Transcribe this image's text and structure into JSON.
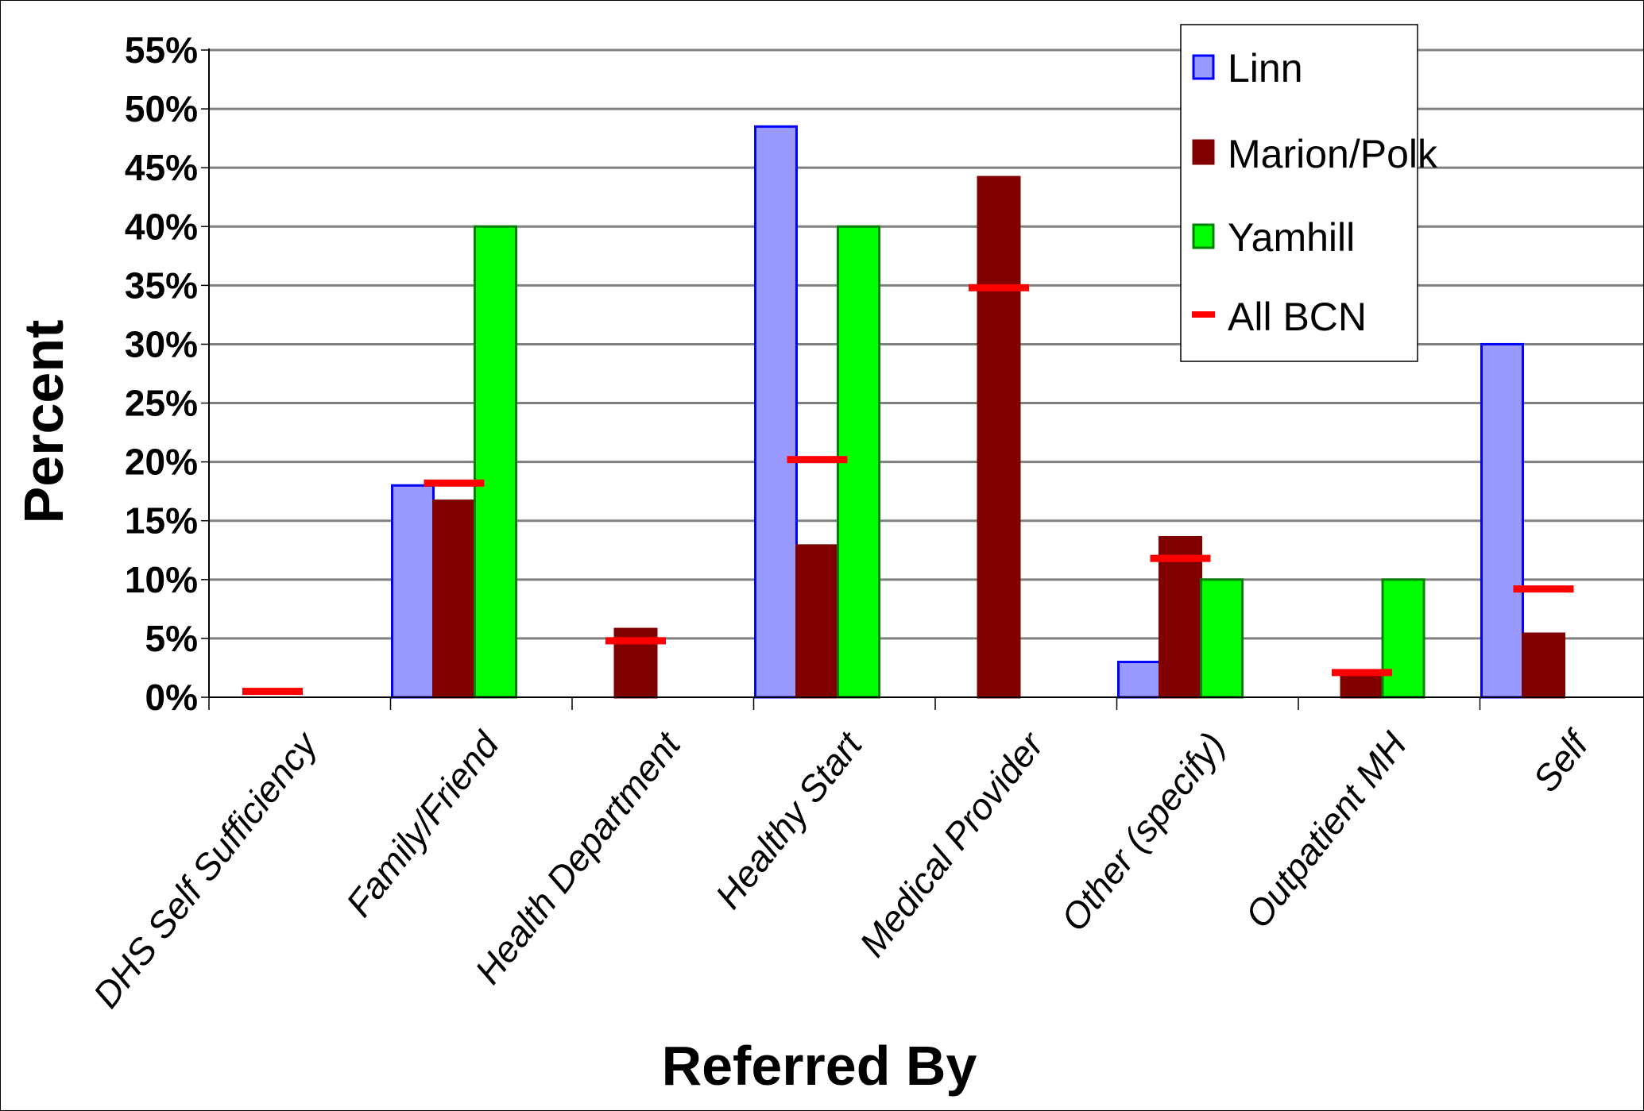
{
  "chart_data": {
    "type": "bar",
    "xlabel": "Referred By",
    "ylabel": "Percent",
    "ylim": [
      0,
      55
    ],
    "yticks": [
      "0%",
      "5%",
      "10%",
      "15%",
      "20%",
      "25%",
      "30%",
      "35%",
      "40%",
      "45%",
      "50%",
      "55%"
    ],
    "grid": true,
    "legend_position": "top-right",
    "categories": [
      "DHS Self Sufficiency",
      "Family/Friend",
      "Health Department",
      "Healthy Start",
      "Medical Provider",
      "Other (specify)",
      "Outpatient MH",
      "Self"
    ],
    "series": [
      {
        "name": "Linn",
        "color": "#9999ff",
        "edge": "#0000ff",
        "values": [
          0,
          18,
          0,
          48.5,
          0,
          3,
          0,
          30
        ]
      },
      {
        "name": "Marion/Polk",
        "color": "#800000",
        "edge": "#800000",
        "values": [
          0,
          16.7,
          5.8,
          12.9,
          44.2,
          13.6,
          2,
          5.4
        ]
      },
      {
        "name": "Yamhill",
        "color": "#00ff00",
        "edge": "#008000",
        "values": [
          0,
          40,
          0,
          40,
          0,
          10,
          10,
          0
        ]
      }
    ],
    "markers": {
      "name": "All BCN",
      "color": "#ff0000",
      "values": [
        0.5,
        18.2,
        4.8,
        20.2,
        34.8,
        11.8,
        2.1,
        9.2
      ]
    }
  }
}
